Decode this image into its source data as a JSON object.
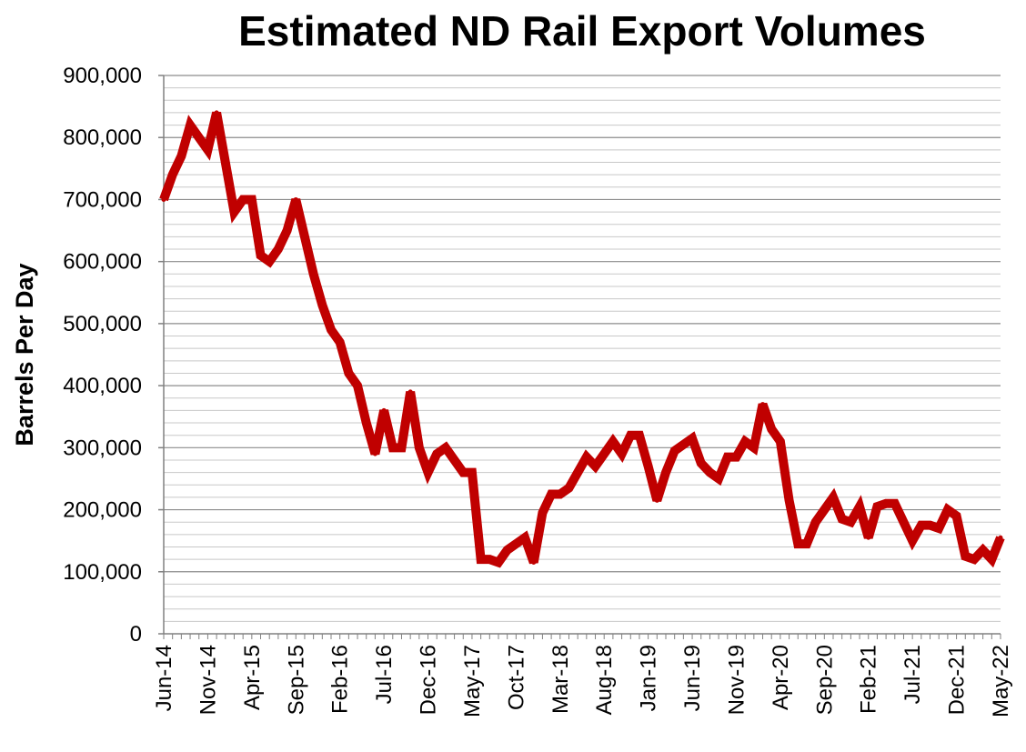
{
  "chart_data": {
    "type": "line",
    "title": "Estimated ND Rail Export Volumes",
    "xlabel": "",
    "ylabel": "Barrels Per Day",
    "ylim": [
      0,
      900000
    ],
    "yticks": [
      "0",
      "100,000",
      "200,000",
      "300,000",
      "400,000",
      "500,000",
      "600,000",
      "700,000",
      "800,000",
      "900,000"
    ],
    "xtick_labels": [
      "Jun-14",
      "Nov-14",
      "Apr-15",
      "Sep-15",
      "Feb-16",
      "Jul-16",
      "Dec-16",
      "May-17",
      "Oct-17",
      "Mar-18",
      "Aug-18",
      "Jan-19",
      "Jun-19",
      "Nov-19",
      "Apr-20",
      "Sep-20",
      "Feb-21",
      "Jul-21",
      "Dec-21",
      "May-22"
    ],
    "grid": true,
    "legend": "none",
    "series_color": "#c00000",
    "x": [
      "Jun-14",
      "Jul-14",
      "Aug-14",
      "Sep-14",
      "Oct-14",
      "Nov-14",
      "Dec-14",
      "Jan-15",
      "Feb-15",
      "Mar-15",
      "Apr-15",
      "May-15",
      "Jun-15",
      "Jul-15",
      "Aug-15",
      "Sep-15",
      "Oct-15",
      "Nov-15",
      "Dec-15",
      "Jan-16",
      "Feb-16",
      "Mar-16",
      "Apr-16",
      "May-16",
      "Jun-16",
      "Jul-16",
      "Aug-16",
      "Sep-16",
      "Oct-16",
      "Nov-16",
      "Dec-16",
      "Jan-17",
      "Feb-17",
      "Mar-17",
      "Apr-17",
      "May-17",
      "Jun-17",
      "Jul-17",
      "Aug-17",
      "Sep-17",
      "Oct-17",
      "Nov-17",
      "Dec-17",
      "Jan-18",
      "Feb-18",
      "Mar-18",
      "Apr-18",
      "May-18",
      "Jun-18",
      "Jul-18",
      "Aug-18",
      "Sep-18",
      "Oct-18",
      "Nov-18",
      "Dec-18",
      "Jan-19",
      "Feb-19",
      "Mar-19",
      "Apr-19",
      "May-19",
      "Jun-19",
      "Jul-19",
      "Aug-19",
      "Sep-19",
      "Oct-19",
      "Nov-19",
      "Dec-19",
      "Jan-20",
      "Feb-20",
      "Mar-20",
      "Apr-20",
      "May-20",
      "Jun-20",
      "Jul-20",
      "Aug-20",
      "Sep-20",
      "Oct-20",
      "Nov-20",
      "Dec-20",
      "Jan-21",
      "Feb-21",
      "Mar-21",
      "Apr-21",
      "May-21",
      "Jun-21",
      "Jul-21",
      "Aug-21",
      "Sep-21",
      "Oct-21",
      "Nov-21",
      "Dec-21",
      "Jan-22",
      "Feb-22",
      "Mar-22",
      "Apr-22",
      "May-22"
    ],
    "series": [
      {
        "values": [
          700000,
          740000,
          770000,
          820000,
          800000,
          780000,
          840000,
          760000,
          680000,
          700000,
          700000,
          610000,
          600000,
          620000,
          650000,
          700000,
          640000,
          580000,
          530000,
          490000,
          470000,
          420000,
          400000,
          340000,
          290000,
          360000,
          300000,
          300000,
          390000,
          300000,
          260000,
          290000,
          300000,
          280000,
          260000,
          260000,
          120000,
          120000,
          115000,
          135000,
          145000,
          155000,
          115000,
          195000,
          225000,
          225000,
          235000,
          260000,
          285000,
          270000,
          290000,
          310000,
          290000,
          320000,
          320000,
          270000,
          215000,
          260000,
          295000,
          305000,
          315000,
          275000,
          260000,
          250000,
          285000,
          285000,
          310000,
          300000,
          370000,
          330000,
          310000,
          215000,
          145000,
          145000,
          180000,
          200000,
          220000,
          185000,
          180000,
          205000,
          155000,
          205000,
          210000,
          210000,
          180000,
          150000,
          175000,
          175000,
          170000,
          200000,
          190000,
          125000,
          120000,
          135000,
          120000,
          155000
        ]
      }
    ]
  }
}
